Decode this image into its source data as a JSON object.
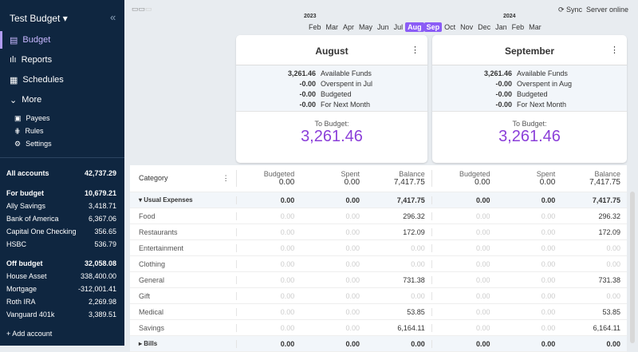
{
  "sidebar": {
    "title": "Test Budget",
    "nav": [
      "Budget",
      "Reports",
      "Schedules",
      "More"
    ],
    "sub": [
      "Payees",
      "Rules",
      "Settings"
    ],
    "all": {
      "name": "All accounts",
      "value": "42,737.29"
    },
    "for_budget": {
      "name": "For budget",
      "value": "10,679.21",
      "accounts": [
        [
          "Ally Savings",
          "3,418.71"
        ],
        [
          "Bank of America",
          "6,367.06"
        ],
        [
          "Capital One Checking",
          "356.65"
        ],
        [
          "HSBC",
          "536.79"
        ]
      ]
    },
    "off_budget": {
      "name": "Off budget",
      "value": "32,058.08",
      "accounts": [
        [
          "House Asset",
          "338,400.00"
        ],
        [
          "Mortgage",
          "-312,001.41"
        ],
        [
          "Roth IRA",
          "2,269.98"
        ],
        [
          "Vanguard 401k",
          "3,389.51"
        ]
      ]
    },
    "add_account": "+ Add account"
  },
  "header": {
    "sync": "Sync",
    "server": "Server online",
    "year1": "2023",
    "year2": "2024",
    "months": [
      "Feb",
      "Mar",
      "Apr",
      "May",
      "Jun",
      "Jul",
      "Aug",
      "Sep",
      "Oct",
      "Nov",
      "Dec",
      "Jan",
      "Feb",
      "Mar"
    ],
    "selected": [
      "Aug",
      "Sep"
    ]
  },
  "accent": "#8b5cf6",
  "cards": [
    {
      "month": "August",
      "rows": [
        [
          "3,261.46",
          "Available Funds"
        ],
        [
          "-0.00",
          "Overspent in Jul"
        ],
        [
          "-0.00",
          "Budgeted"
        ],
        [
          "-0.00",
          "For Next Month"
        ]
      ],
      "to_budget_label": "To Budget:",
      "to_budget": "3,261.46"
    },
    {
      "month": "September",
      "rows": [
        [
          "3,261.46",
          "Available Funds"
        ],
        [
          "-0.00",
          "Overspent in Aug"
        ],
        [
          "-0.00",
          "Budgeted"
        ],
        [
          "-0.00",
          "For Next Month"
        ]
      ],
      "to_budget_label": "To Budget:",
      "to_budget": "3,261.46"
    }
  ],
  "table": {
    "category_label": "Category",
    "col_labels": [
      "Budgeted",
      "Spent",
      "Balance"
    ],
    "totals": [
      [
        "0.00",
        "0.00",
        "7,417.75"
      ],
      [
        "0.00",
        "0.00",
        "7,417.75"
      ]
    ],
    "group": {
      "name": "Usual Expenses",
      "values": [
        "0.00",
        "0.00",
        "7,417.75",
        "0.00",
        "0.00",
        "7,417.75"
      ]
    },
    "rows": [
      [
        "Food",
        "296.32"
      ],
      [
        "Restaurants",
        "172.09"
      ],
      [
        "Entertainment",
        "0.00"
      ],
      [
        "Clothing",
        "0.00"
      ],
      [
        "General",
        "731.38"
      ],
      [
        "Gift",
        "0.00"
      ],
      [
        "Medical",
        "53.85"
      ],
      [
        "Savings",
        "6,164.11"
      ]
    ],
    "zero": "0.00",
    "next_group": {
      "name": "Bills",
      "values": [
        "0.00",
        "0.00",
        "0.00",
        "0.00",
        "0.00",
        "0.00"
      ]
    }
  }
}
